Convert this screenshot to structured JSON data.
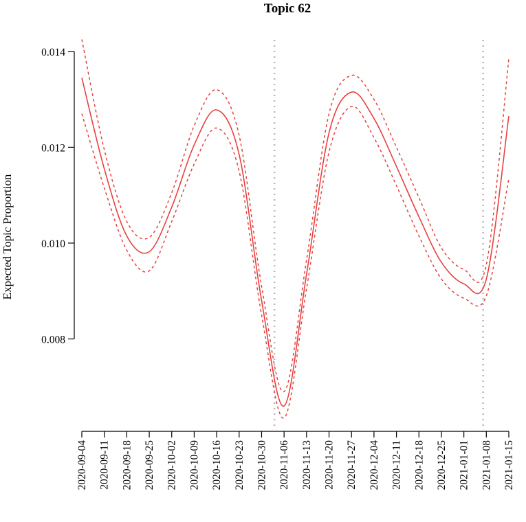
{
  "chart_data": {
    "type": "line",
    "title": "Topic 62",
    "xlabel": "",
    "ylabel": "Expected Topic Proportion",
    "x_ticks": [
      "2020-09-04",
      "2020-09-11",
      "2020-09-18",
      "2020-09-25",
      "2020-10-02",
      "2020-10-09",
      "2020-10-16",
      "2020-10-23",
      "2020-10-30",
      "2020-11-06",
      "2020-11-13",
      "2020-11-20",
      "2020-11-27",
      "2020-12-04",
      "2020-12-11",
      "2020-12-18",
      "2020-12-25",
      "2021-01-01",
      "2021-01-08",
      "2021-01-15"
    ],
    "y_ticks": [
      "0.008",
      "0.010",
      "0.012",
      "0.014"
    ],
    "y_tick_values": [
      0.008,
      0.01,
      0.012,
      0.014
    ],
    "xlim": [
      "2020-09-04",
      "2021-01-15"
    ],
    "ylim": [
      0.0061,
      0.0145
    ],
    "vertical_reference_lines": [
      "2020-11-03",
      "2021-01-07"
    ],
    "colors": {
      "fit": "#e8403f",
      "band": "#e8403f",
      "reference": "#b8b8b8"
    },
    "series": [
      {
        "style": "solid",
        "x": [
          "2020-09-04",
          "2020-09-11",
          "2020-09-18",
          "2020-09-25",
          "2020-10-02",
          "2020-10-09",
          "2020-10-16",
          "2020-10-23",
          "2020-10-30",
          "2020-11-06",
          "2020-11-13",
          "2020-11-20",
          "2020-11-27",
          "2020-12-04",
          "2020-12-11",
          "2020-12-18",
          "2020-12-25",
          "2021-01-01",
          "2021-01-08",
          "2021-01-15"
        ],
        "values": [
          0.01345,
          0.01155,
          0.01015,
          0.00982,
          0.01075,
          0.01205,
          0.01278,
          0.01185,
          0.0088,
          0.0066,
          0.00935,
          0.0123,
          0.01315,
          0.0126,
          0.0116,
          0.01055,
          0.0096,
          0.00915,
          0.00925,
          0.01265
        ]
      },
      {
        "style": "dashed",
        "x": [
          "2020-09-04",
          "2020-09-11",
          "2020-09-18",
          "2020-09-25",
          "2020-10-02",
          "2020-10-09",
          "2020-10-16",
          "2020-10-23",
          "2020-10-30",
          "2020-11-06",
          "2020-11-13",
          "2020-11-20",
          "2020-11-27",
          "2020-12-04",
          "2020-12-11",
          "2020-12-18",
          "2020-12-25",
          "2021-01-01",
          "2021-01-08",
          "2021-01-15"
        ],
        "values": [
          0.01425,
          0.01195,
          0.01045,
          0.01012,
          0.01105,
          0.01245,
          0.0132,
          0.01225,
          0.0091,
          0.0069,
          0.00965,
          0.0127,
          0.0135,
          0.013,
          0.012,
          0.01095,
          0.0099,
          0.00945,
          0.00955,
          0.01385
        ]
      },
      {
        "style": "dashed",
        "x": [
          "2020-09-04",
          "2020-09-11",
          "2020-09-18",
          "2020-09-25",
          "2020-10-02",
          "2020-10-09",
          "2020-10-16",
          "2020-10-23",
          "2020-10-30",
          "2020-11-06",
          "2020-11-13",
          "2020-11-20",
          "2020-11-27",
          "2020-12-04",
          "2020-12-11",
          "2020-12-18",
          "2020-12-25",
          "2021-01-01",
          "2021-01-08",
          "2021-01-15"
        ],
        "values": [
          0.0127,
          0.01115,
          0.00985,
          0.00942,
          0.01045,
          0.01165,
          0.0124,
          0.0115,
          0.0085,
          0.00635,
          0.00905,
          0.0119,
          0.01285,
          0.0122,
          0.0112,
          0.01015,
          0.00925,
          0.00885,
          0.0089,
          0.01135
        ]
      }
    ]
  }
}
